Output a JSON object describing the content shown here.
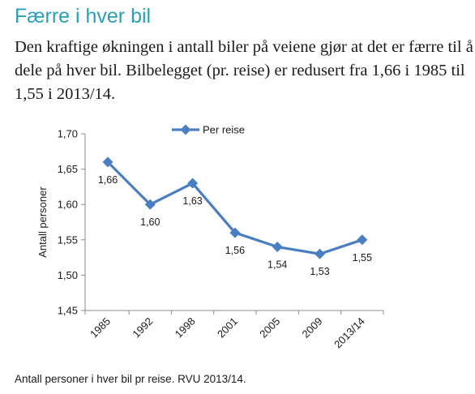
{
  "heading": "Færre i hver bil",
  "intro": "Den kraftige økningen i antall biler på veiene gjør at det er færre til å dele på hver bil. Bilbelegget (pr. reise) er redusert fra 1,66 i 1985 til 1,55 i 2013/14.",
  "caption": "Antall personer i hver bil pr reise. RVU 2013/14.",
  "chart_data": {
    "type": "line",
    "categories": [
      "1985",
      "1992",
      "1998",
      "2001",
      "2005",
      "2009",
      "2013/14"
    ],
    "series": [
      {
        "name": "Per reise",
        "values": [
          1.66,
          1.6,
          1.63,
          1.56,
          1.54,
          1.53,
          1.55
        ],
        "labels": [
          "1,66",
          "1,60",
          "1,63",
          "1,56",
          "1,54",
          "1,53",
          "1,55"
        ],
        "color": "#4a7ec2"
      }
    ],
    "ylabel": "Antall personer",
    "ylim": [
      1.45,
      1.7
    ],
    "yticks": [
      "1,45",
      "1,50",
      "1,55",
      "1,60",
      "1,65",
      "1,70"
    ],
    "ytick_values": [
      1.45,
      1.5,
      1.55,
      1.6,
      1.65,
      1.7
    ],
    "legend": "top",
    "grid": false
  }
}
